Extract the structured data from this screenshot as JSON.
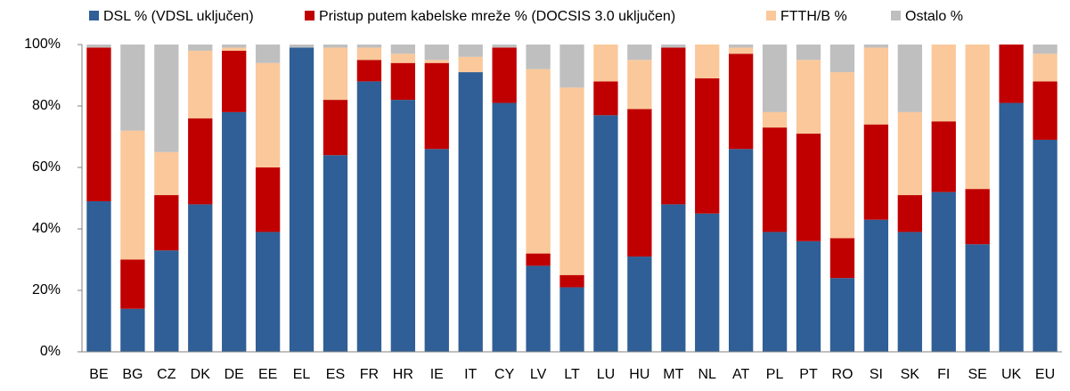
{
  "chart_data": {
    "type": "stacked-bar",
    "categories": [
      "BE",
      "BG",
      "CZ",
      "DK",
      "DE",
      "EE",
      "EL",
      "ES",
      "FR",
      "HR",
      "IE",
      "IT",
      "CY",
      "LV",
      "LT",
      "LU",
      "HU",
      "MT",
      "NL",
      "AT",
      "PL",
      "PT",
      "RO",
      "SI",
      "SK",
      "FI",
      "SE",
      "UK",
      "EU"
    ],
    "series": [
      {
        "name": "DSL % (VDSL uključen)",
        "color": "#2f5f96",
        "values": [
          49,
          14,
          33,
          48,
          78,
          39,
          99,
          64,
          88,
          82,
          66,
          91,
          81,
          28,
          21,
          77,
          31,
          48,
          45,
          66,
          39,
          36,
          24,
          43,
          39,
          52,
          35,
          81,
          69
        ]
      },
      {
        "name": "Pristup putem kabelske mreže % (DOCSIS 3.0 uključen)",
        "color": "#c00000",
        "values": [
          50,
          16,
          18,
          28,
          20,
          21,
          0,
          18,
          7,
          12,
          28,
          0,
          18,
          4,
          4,
          11,
          48,
          51,
          44,
          31,
          34,
          35,
          13,
          31,
          12,
          23,
          18,
          19,
          19
        ]
      },
      {
        "name": "FTTH/B %",
        "color": "#fac89a",
        "values": [
          0,
          42,
          14,
          22,
          1,
          34,
          0,
          17,
          4,
          3,
          1,
          5,
          0,
          60,
          61,
          12,
          16,
          0,
          11,
          2,
          5,
          24,
          54,
          25,
          27,
          25,
          47,
          0,
          9
        ]
      },
      {
        "name": "Ostalo %",
        "color": "#bfbfbf",
        "values": [
          1,
          28,
          35,
          2,
          1,
          6,
          1,
          1,
          1,
          3,
          5,
          4,
          1,
          8,
          14,
          0,
          5,
          1,
          0,
          1,
          22,
          5,
          9,
          1,
          22,
          0,
          0,
          0,
          3
        ]
      }
    ],
    "ylim": [
      0,
      100
    ],
    "yticks": [
      {
        "value": 0,
        "label": "0%"
      },
      {
        "value": 20,
        "label": "20%"
      },
      {
        "value": 40,
        "label": "40%"
      },
      {
        "value": 60,
        "label": "60%"
      },
      {
        "value": 80,
        "label": "80%"
      },
      {
        "value": 100,
        "label": "100%"
      }
    ]
  }
}
